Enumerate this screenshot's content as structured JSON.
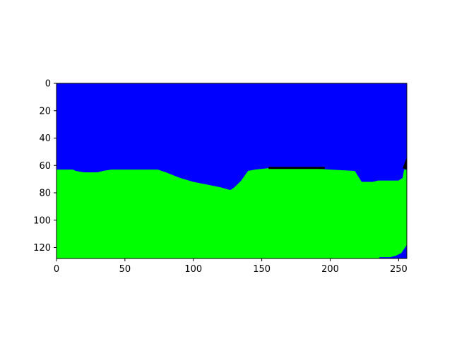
{
  "chart_data": {
    "type": "heatmap",
    "title": "",
    "xlabel": "",
    "ylabel": "",
    "xlim": [
      0,
      256
    ],
    "ylim": [
      128,
      0
    ],
    "y_axis_inverted": true,
    "grid": false,
    "legend": "none",
    "x_ticks": [
      0,
      50,
      100,
      150,
      200,
      250
    ],
    "y_ticks": [
      0,
      20,
      40,
      60,
      80,
      100,
      120
    ],
    "colors": {
      "sky_region": "#0000ff",
      "ground_region": "#00ff00",
      "dark_region": "#000000"
    },
    "boundary": {
      "description_units": "column index x vs row index y where ground (green) begins",
      "points": [
        [
          0,
          63
        ],
        [
          12,
          63
        ],
        [
          14,
          64
        ],
        [
          20,
          65
        ],
        [
          30,
          65
        ],
        [
          34,
          64
        ],
        [
          40,
          63
        ],
        [
          74,
          63
        ],
        [
          80,
          65
        ],
        [
          90,
          69
        ],
        [
          100,
          72
        ],
        [
          110,
          74
        ],
        [
          120,
          76
        ],
        [
          127,
          78
        ],
        [
          130,
          76
        ],
        [
          135,
          71
        ],
        [
          140,
          64
        ],
        [
          145,
          63
        ],
        [
          155,
          62
        ],
        [
          165,
          62
        ],
        [
          185,
          62
        ],
        [
          200,
          63
        ],
        [
          218,
          64
        ],
        [
          223,
          72
        ],
        [
          231,
          72
        ],
        [
          235,
          71
        ],
        [
          250,
          71
        ],
        [
          253,
          69
        ],
        [
          254,
          63
        ],
        [
          256,
          63
        ]
      ]
    },
    "dark_band_top": {
      "description_units": "thin dark strip above ground near x 155-195",
      "x_range": [
        155,
        196
      ],
      "y_top": 61
    },
    "dark_corner": {
      "description_units": "small dark patch at right edge near top of ground",
      "points": [
        [
          253,
          62
        ],
        [
          256,
          54
        ],
        [
          256,
          63
        ]
      ]
    },
    "bottom_right_sky": {
      "description_units": "small blue patch at bottom right corner",
      "points": [
        [
          236,
          128
        ],
        [
          236,
          127
        ],
        [
          244,
          127
        ],
        [
          248,
          126
        ],
        [
          252,
          124
        ],
        [
          254,
          121
        ],
        [
          256,
          118
        ],
        [
          256,
          128
        ]
      ]
    }
  }
}
